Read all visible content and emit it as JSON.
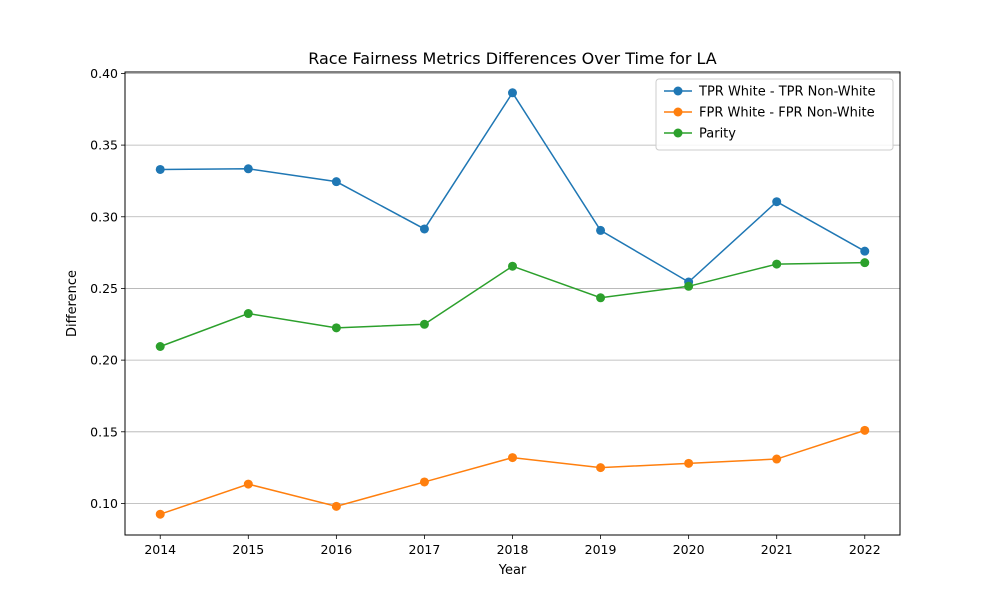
{
  "chart_data": {
    "type": "line",
    "title": "Race Fairness Metrics Differences Over Time for LA",
    "xlabel": "Year",
    "ylabel": "Difference",
    "x": [
      "2014",
      "2015",
      "2016",
      "2017",
      "2018",
      "2019",
      "2020",
      "2021",
      "2022"
    ],
    "xlim": [
      2013.6,
      2022.4
    ],
    "ylim": [
      0.078,
      0.401
    ],
    "yticks": [
      "0.10",
      "0.15",
      "0.20",
      "0.25",
      "0.30",
      "0.35",
      "0.40"
    ],
    "grid": "horizontal",
    "legend_position": "top-right",
    "series": [
      {
        "name": "TPR White - TPR Non-White",
        "color": "#1f77b4",
        "values": [
          0.333,
          0.3335,
          0.3245,
          0.2915,
          0.3865,
          0.2905,
          0.2545,
          0.3105,
          0.276
        ]
      },
      {
        "name": "FPR White - FPR Non-White",
        "color": "#ff7f0e",
        "values": [
          0.0925,
          0.1135,
          0.098,
          0.115,
          0.132,
          0.125,
          0.128,
          0.131,
          0.151
        ]
      },
      {
        "name": "Parity",
        "color": "#2ca02c",
        "values": [
          0.2095,
          0.2325,
          0.2225,
          0.225,
          0.2655,
          0.2435,
          0.2515,
          0.267,
          0.268
        ]
      }
    ]
  }
}
